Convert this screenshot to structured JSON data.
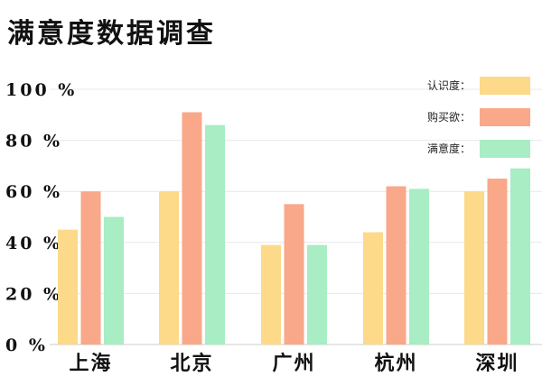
{
  "chart_data": {
    "type": "bar",
    "title": "满意度数据调查",
    "categories": [
      "上海",
      "北京",
      "广州",
      "杭州",
      "深圳"
    ],
    "series": [
      {
        "name": "认识度：",
        "color": "#FDD98A",
        "values": [
          45,
          60,
          39,
          44,
          60
        ]
      },
      {
        "name": "购买欲：",
        "color": "#F9A889",
        "values": [
          60,
          91,
          55,
          62,
          65
        ]
      },
      {
        "name": "满意度：",
        "color": "#A8EDC3",
        "values": [
          50,
          86,
          39,
          61,
          69
        ]
      }
    ],
    "y_ticks": [
      "0 %",
      "20 %",
      "40 %",
      "60 %",
      "80 %",
      "100 %"
    ],
    "ylim": [
      0,
      100
    ],
    "grid": true,
    "legend_position": "top-right"
  }
}
